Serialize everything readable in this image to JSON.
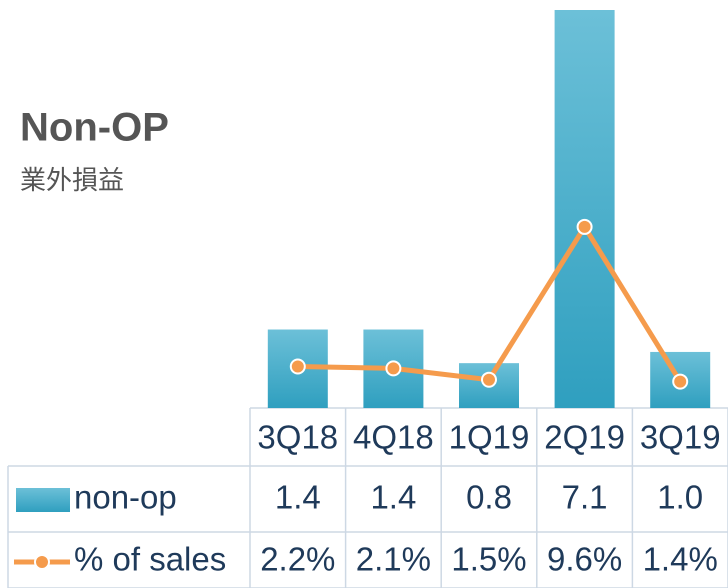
{
  "chart_data": {
    "type": "bar",
    "title": "Non-OP",
    "subtitle": "業外損益",
    "categories": [
      "3Q18",
      "4Q18",
      "1Q19",
      "2Q19",
      "3Q19"
    ],
    "series": [
      {
        "name": "non-op",
        "type": "bar",
        "color": "#46aecb",
        "values": [
          1.4,
          1.4,
          0.8,
          7.1,
          1.0
        ],
        "value_labels": [
          "1.4",
          "1.4",
          "0.8",
          "7.1",
          "1.0"
        ]
      },
      {
        "name": "% of sales",
        "type": "line",
        "axis": "y2",
        "color": "#f59b4c",
        "values": [
          2.2,
          2.1,
          1.5,
          9.6,
          1.4
        ],
        "value_labels": [
          "2.2%",
          "2.1%",
          "1.5%",
          "9.6%",
          "1.4%"
        ]
      }
    ],
    "ylim": [
      0,
      7.1
    ],
    "y2lim": [
      0,
      21.1
    ]
  }
}
